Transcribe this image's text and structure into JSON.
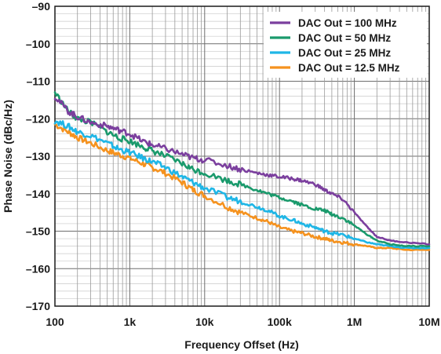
{
  "chart_data": {
    "type": "line",
    "xlabel": "Frequency Offset (Hz)",
    "ylabel": "Phase Noise (dBc/Hz)",
    "x_scale": "log",
    "xlim": [
      100,
      10000000
    ],
    "ylim": [
      -170,
      -90
    ],
    "x_ticks": [
      {
        "value": 100,
        "label": "100"
      },
      {
        "value": 1000,
        "label": "1k"
      },
      {
        "value": 10000,
        "label": "10k"
      },
      {
        "value": 100000,
        "label": "100k"
      },
      {
        "value": 1000000,
        "label": "1M"
      },
      {
        "value": 10000000,
        "label": "10M"
      }
    ],
    "y_ticks": [
      {
        "value": -90,
        "label": "–90"
      },
      {
        "value": -100,
        "label": "–100"
      },
      {
        "value": -110,
        "label": "–110"
      },
      {
        "value": -120,
        "label": "–120"
      },
      {
        "value": -130,
        "label": "–130"
      },
      {
        "value": -140,
        "label": "–140"
      },
      {
        "value": -150,
        "label": "–150"
      },
      {
        "value": -160,
        "label": "–160"
      },
      {
        "value": -170,
        "label": "–170"
      }
    ],
    "grid": true,
    "legend_position": "top-right",
    "series": [
      {
        "name": "DAC Out = 100 MHz",
        "color": "#7b3f9e",
        "x": [
          100,
          150,
          200,
          300,
          500,
          700,
          1000,
          1500,
          2000,
          3000,
          5000,
          7000,
          10000,
          20000,
          30000,
          50000,
          70000,
          100000,
          150000,
          200000,
          300000,
          400000,
          500000,
          700000,
          1000000,
          1500000,
          2000000,
          3000000,
          5000000,
          10000000
        ],
        "y": [
          -114,
          -118,
          -119.5,
          -121,
          -122,
          -123,
          -124,
          -126,
          -127,
          -128,
          -129.5,
          -130.5,
          -131,
          -132.5,
          -133.5,
          -134.5,
          -135,
          -135.5,
          -136,
          -136.5,
          -137.5,
          -139,
          -140,
          -141.5,
          -145,
          -149,
          -151.5,
          -152.5,
          -153,
          -153.5
        ]
      },
      {
        "name": "DAC Out = 50 MHz",
        "color": "#1a9a6c",
        "x": [
          100,
          150,
          200,
          300,
          500,
          700,
          1000,
          1500,
          2000,
          3000,
          5000,
          7000,
          10000,
          20000,
          30000,
          50000,
          70000,
          100000,
          150000,
          200000,
          300000,
          400000,
          500000,
          700000,
          1000000,
          1500000,
          2000000,
          3000000,
          5000000,
          10000000
        ],
        "y": [
          -113,
          -118,
          -120,
          -121,
          -123.5,
          -125,
          -126,
          -127.5,
          -128.5,
          -130,
          -132,
          -133.5,
          -134.5,
          -136.5,
          -137.5,
          -139,
          -140,
          -141,
          -142,
          -143,
          -144,
          -144.5,
          -145.5,
          -146.5,
          -148.5,
          -151,
          -152.5,
          -153.5,
          -154,
          -154
        ]
      },
      {
        "name": "DAC Out = 25 MHz",
        "color": "#1fb6e6",
        "x": [
          100,
          150,
          200,
          300,
          500,
          700,
          1000,
          1500,
          2000,
          3000,
          5000,
          7000,
          10000,
          20000,
          30000,
          50000,
          70000,
          100000,
          150000,
          200000,
          300000,
          400000,
          500000,
          700000,
          1000000,
          1500000,
          2000000,
          3000000,
          5000000,
          10000000
        ],
        "y": [
          -120.5,
          -122,
          -123.5,
          -124.5,
          -126.5,
          -128,
          -129,
          -130.5,
          -131.5,
          -133,
          -135.5,
          -137,
          -138.5,
          -141,
          -142,
          -143.5,
          -144.5,
          -146,
          -147,
          -148,
          -149,
          -150,
          -150.5,
          -151,
          -152,
          -153,
          -153.5,
          -154,
          -154.5,
          -154.5
        ]
      },
      {
        "name": "DAC Out = 12.5 MHz",
        "color": "#f5921e",
        "x": [
          100,
          150,
          200,
          300,
          500,
          700,
          1000,
          1500,
          2000,
          3000,
          5000,
          7000,
          10000,
          20000,
          30000,
          50000,
          70000,
          100000,
          150000,
          200000,
          300000,
          400000,
          500000,
          700000,
          1000000,
          1500000,
          2000000,
          3000000,
          5000000,
          10000000
        ],
        "y": [
          -121.5,
          -123.5,
          -125,
          -126.5,
          -128.5,
          -129.5,
          -130.5,
          -132,
          -133,
          -134.5,
          -137,
          -139,
          -140.5,
          -143.5,
          -145,
          -146.5,
          -147.5,
          -149,
          -150,
          -150.5,
          -151.5,
          -152,
          -152.5,
          -153,
          -153.5,
          -154,
          -154.5,
          -154.5,
          -155,
          -155
        ]
      }
    ]
  }
}
